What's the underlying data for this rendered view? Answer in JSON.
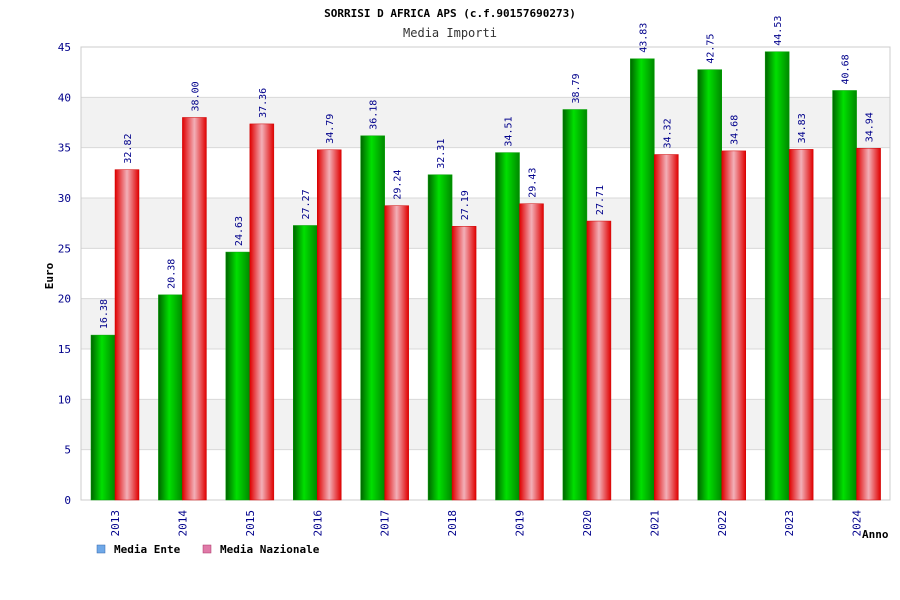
{
  "chart_data": {
    "type": "bar",
    "title": "SORRISI D AFRICA APS (c.f.90157690273)",
    "subtitle": "Media Importi",
    "xlabel": "Anno",
    "ylabel": "Euro",
    "ylim": [
      0,
      45
    ],
    "yticks": [
      0,
      5,
      10,
      15,
      20,
      25,
      30,
      35,
      40,
      45
    ],
    "ytick_labels": [
      "0",
      "5",
      "10",
      "15",
      "20",
      "25",
      "30",
      "35",
      "40",
      "45"
    ],
    "categories": [
      "2013",
      "2014",
      "2015",
      "2016",
      "2017",
      "2018",
      "2019",
      "2020",
      "2021",
      "2022",
      "2023",
      "2024"
    ],
    "series": [
      {
        "name": "Media Ente",
        "legend_label": "Media Ente",
        "color": "#00c000",
        "legend_color": "#6fa8e8",
        "values": [
          16.38,
          20.38,
          24.63,
          27.27,
          36.18,
          32.31,
          34.51,
          38.79,
          43.83,
          42.75,
          44.53,
          40.68
        ],
        "labels": [
          "16.38",
          "20.38",
          "24.63",
          "27.27",
          "36.18",
          "32.31",
          "34.51",
          "38.79",
          "43.83",
          "42.75",
          "44.53",
          "40.68"
        ]
      },
      {
        "name": "Media Nazionale",
        "legend_label": "Media Nazionale",
        "color": "#f00000",
        "legend_color": "#e07aa8",
        "values": [
          32.82,
          38.0,
          37.36,
          34.79,
          29.24,
          27.19,
          29.43,
          27.71,
          34.32,
          34.68,
          34.83,
          34.94
        ],
        "labels": [
          "32.82",
          "38.00",
          "37.36",
          "34.79",
          "29.24",
          "27.19",
          "29.43",
          "27.71",
          "34.32",
          "34.68",
          "34.83",
          "34.94"
        ]
      }
    ],
    "grid": true,
    "legend_position": "bottom-left",
    "colors": {
      "title": "#000000",
      "subtitle": "#333333",
      "tick": "#00008b",
      "value_label": "#00008b",
      "band": "#f2f2f2",
      "grid": "#d8d8d8",
      "frame": "#cccccc"
    }
  }
}
